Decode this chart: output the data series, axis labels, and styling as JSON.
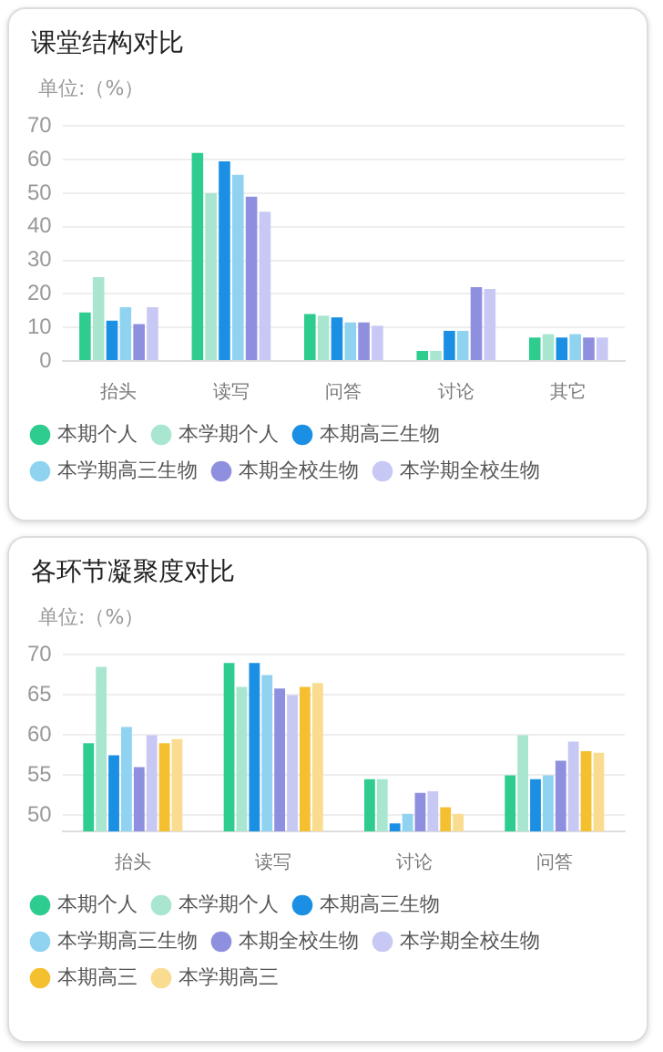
{
  "chart_data": [
    {
      "type": "bar",
      "title": "课堂结构对比",
      "ylabel": "单位:（%）",
      "categories": [
        "抬头",
        "读写",
        "问答",
        "讨论",
        "其它"
      ],
      "ylim": [
        0,
        70
      ],
      "yticks": [
        0,
        10,
        20,
        30,
        40,
        50,
        60,
        70
      ],
      "grid": "y",
      "legend": "bottom",
      "series": [
        {
          "name": "本期个人",
          "color": "#2ecc8f",
          "values": [
            14.5,
            62,
            14,
            3,
            7
          ]
        },
        {
          "name": "本学期个人",
          "color": "#a8e6cf",
          "values": [
            25,
            50,
            13.5,
            3,
            8
          ]
        },
        {
          "name": "本期高三生物",
          "color": "#1a8fe3",
          "values": [
            12,
            59.5,
            13,
            9,
            7
          ]
        },
        {
          "name": "本学期高三生物",
          "color": "#8fd3f0",
          "values": [
            16,
            55.5,
            11.5,
            9,
            8
          ]
        },
        {
          "name": "本期全校生物",
          "color": "#8f8fe0",
          "values": [
            11,
            49,
            11.5,
            22,
            7
          ]
        },
        {
          "name": "本学期全校生物",
          "color": "#c8c8f5",
          "values": [
            16,
            44.5,
            10.5,
            21.5,
            7
          ]
        }
      ]
    },
    {
      "type": "bar",
      "title": "各环节凝聚度对比",
      "ylabel": "单位:（%）",
      "categories": [
        "抬头",
        "读写",
        "讨论",
        "问答"
      ],
      "ylim": [
        48,
        70
      ],
      "yticks": [
        50,
        55,
        60,
        65,
        70
      ],
      "grid": "y",
      "legend": "bottom",
      "series": [
        {
          "name": "本期个人",
          "color": "#2ecc8f",
          "values": [
            59,
            69,
            54.5,
            55
          ]
        },
        {
          "name": "本学期个人",
          "color": "#a8e6cf",
          "values": [
            68.5,
            66,
            54.5,
            60
          ]
        },
        {
          "name": "本期高三生物",
          "color": "#1a8fe3",
          "values": [
            57.5,
            69,
            49,
            54.5
          ]
        },
        {
          "name": "本学期高三生物",
          "color": "#8fd3f0",
          "values": [
            61,
            67.5,
            50.2,
            55
          ]
        },
        {
          "name": "本期全校生物",
          "color": "#8f8fe0",
          "values": [
            56,
            65.8,
            52.8,
            56.8
          ]
        },
        {
          "name": "本学期全校生物",
          "color": "#c8c8f5",
          "values": [
            60,
            65,
            53,
            59.2
          ]
        },
        {
          "name": "本期高三",
          "color": "#f5c030",
          "values": [
            59,
            66,
            51,
            58
          ]
        },
        {
          "name": "本学期高三",
          "color": "#f9dc90",
          "values": [
            59.5,
            66.5,
            50.2,
            57.8
          ]
        }
      ]
    }
  ]
}
